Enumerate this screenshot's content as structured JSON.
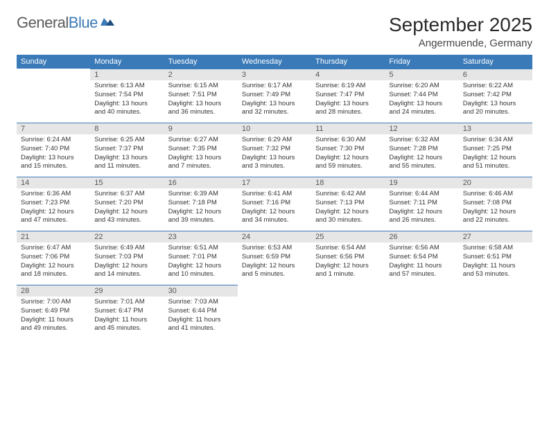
{
  "logo": {
    "part1": "General",
    "part2": "Blue"
  },
  "title": "September 2025",
  "location": "Angermuende, Germany",
  "colors": {
    "header_bg": "#3a7ab8",
    "header_text": "#ffffff",
    "daynum_bg": "#e6e6e6",
    "row_divider": "#3a7ab8",
    "body_text": "#333333"
  },
  "weekdays": [
    "Sunday",
    "Monday",
    "Tuesday",
    "Wednesday",
    "Thursday",
    "Friday",
    "Saturday"
  ],
  "weeks": [
    [
      null,
      {
        "n": "1",
        "sr": "Sunrise: 6:13 AM",
        "ss": "Sunset: 7:54 PM",
        "d1": "Daylight: 13 hours",
        "d2": "and 40 minutes."
      },
      {
        "n": "2",
        "sr": "Sunrise: 6:15 AM",
        "ss": "Sunset: 7:51 PM",
        "d1": "Daylight: 13 hours",
        "d2": "and 36 minutes."
      },
      {
        "n": "3",
        "sr": "Sunrise: 6:17 AM",
        "ss": "Sunset: 7:49 PM",
        "d1": "Daylight: 13 hours",
        "d2": "and 32 minutes."
      },
      {
        "n": "4",
        "sr": "Sunrise: 6:19 AM",
        "ss": "Sunset: 7:47 PM",
        "d1": "Daylight: 13 hours",
        "d2": "and 28 minutes."
      },
      {
        "n": "5",
        "sr": "Sunrise: 6:20 AM",
        "ss": "Sunset: 7:44 PM",
        "d1": "Daylight: 13 hours",
        "d2": "and 24 minutes."
      },
      {
        "n": "6",
        "sr": "Sunrise: 6:22 AM",
        "ss": "Sunset: 7:42 PM",
        "d1": "Daylight: 13 hours",
        "d2": "and 20 minutes."
      }
    ],
    [
      {
        "n": "7",
        "sr": "Sunrise: 6:24 AM",
        "ss": "Sunset: 7:40 PM",
        "d1": "Daylight: 13 hours",
        "d2": "and 15 minutes."
      },
      {
        "n": "8",
        "sr": "Sunrise: 6:25 AM",
        "ss": "Sunset: 7:37 PM",
        "d1": "Daylight: 13 hours",
        "d2": "and 11 minutes."
      },
      {
        "n": "9",
        "sr": "Sunrise: 6:27 AM",
        "ss": "Sunset: 7:35 PM",
        "d1": "Daylight: 13 hours",
        "d2": "and 7 minutes."
      },
      {
        "n": "10",
        "sr": "Sunrise: 6:29 AM",
        "ss": "Sunset: 7:32 PM",
        "d1": "Daylight: 13 hours",
        "d2": "and 3 minutes."
      },
      {
        "n": "11",
        "sr": "Sunrise: 6:30 AM",
        "ss": "Sunset: 7:30 PM",
        "d1": "Daylight: 12 hours",
        "d2": "and 59 minutes."
      },
      {
        "n": "12",
        "sr": "Sunrise: 6:32 AM",
        "ss": "Sunset: 7:28 PM",
        "d1": "Daylight: 12 hours",
        "d2": "and 55 minutes."
      },
      {
        "n": "13",
        "sr": "Sunrise: 6:34 AM",
        "ss": "Sunset: 7:25 PM",
        "d1": "Daylight: 12 hours",
        "d2": "and 51 minutes."
      }
    ],
    [
      {
        "n": "14",
        "sr": "Sunrise: 6:36 AM",
        "ss": "Sunset: 7:23 PM",
        "d1": "Daylight: 12 hours",
        "d2": "and 47 minutes."
      },
      {
        "n": "15",
        "sr": "Sunrise: 6:37 AM",
        "ss": "Sunset: 7:20 PM",
        "d1": "Daylight: 12 hours",
        "d2": "and 43 minutes."
      },
      {
        "n": "16",
        "sr": "Sunrise: 6:39 AM",
        "ss": "Sunset: 7:18 PM",
        "d1": "Daylight: 12 hours",
        "d2": "and 39 minutes."
      },
      {
        "n": "17",
        "sr": "Sunrise: 6:41 AM",
        "ss": "Sunset: 7:16 PM",
        "d1": "Daylight: 12 hours",
        "d2": "and 34 minutes."
      },
      {
        "n": "18",
        "sr": "Sunrise: 6:42 AM",
        "ss": "Sunset: 7:13 PM",
        "d1": "Daylight: 12 hours",
        "d2": "and 30 minutes."
      },
      {
        "n": "19",
        "sr": "Sunrise: 6:44 AM",
        "ss": "Sunset: 7:11 PM",
        "d1": "Daylight: 12 hours",
        "d2": "and 26 minutes."
      },
      {
        "n": "20",
        "sr": "Sunrise: 6:46 AM",
        "ss": "Sunset: 7:08 PM",
        "d1": "Daylight: 12 hours",
        "d2": "and 22 minutes."
      }
    ],
    [
      {
        "n": "21",
        "sr": "Sunrise: 6:47 AM",
        "ss": "Sunset: 7:06 PM",
        "d1": "Daylight: 12 hours",
        "d2": "and 18 minutes."
      },
      {
        "n": "22",
        "sr": "Sunrise: 6:49 AM",
        "ss": "Sunset: 7:03 PM",
        "d1": "Daylight: 12 hours",
        "d2": "and 14 minutes."
      },
      {
        "n": "23",
        "sr": "Sunrise: 6:51 AM",
        "ss": "Sunset: 7:01 PM",
        "d1": "Daylight: 12 hours",
        "d2": "and 10 minutes."
      },
      {
        "n": "24",
        "sr": "Sunrise: 6:53 AM",
        "ss": "Sunset: 6:59 PM",
        "d1": "Daylight: 12 hours",
        "d2": "and 5 minutes."
      },
      {
        "n": "25",
        "sr": "Sunrise: 6:54 AM",
        "ss": "Sunset: 6:56 PM",
        "d1": "Daylight: 12 hours",
        "d2": "and 1 minute."
      },
      {
        "n": "26",
        "sr": "Sunrise: 6:56 AM",
        "ss": "Sunset: 6:54 PM",
        "d1": "Daylight: 11 hours",
        "d2": "and 57 minutes."
      },
      {
        "n": "27",
        "sr": "Sunrise: 6:58 AM",
        "ss": "Sunset: 6:51 PM",
        "d1": "Daylight: 11 hours",
        "d2": "and 53 minutes."
      }
    ],
    [
      {
        "n": "28",
        "sr": "Sunrise: 7:00 AM",
        "ss": "Sunset: 6:49 PM",
        "d1": "Daylight: 11 hours",
        "d2": "and 49 minutes."
      },
      {
        "n": "29",
        "sr": "Sunrise: 7:01 AM",
        "ss": "Sunset: 6:47 PM",
        "d1": "Daylight: 11 hours",
        "d2": "and 45 minutes."
      },
      {
        "n": "30",
        "sr": "Sunrise: 7:03 AM",
        "ss": "Sunset: 6:44 PM",
        "d1": "Daylight: 11 hours",
        "d2": "and 41 minutes."
      },
      null,
      null,
      null,
      null
    ]
  ]
}
